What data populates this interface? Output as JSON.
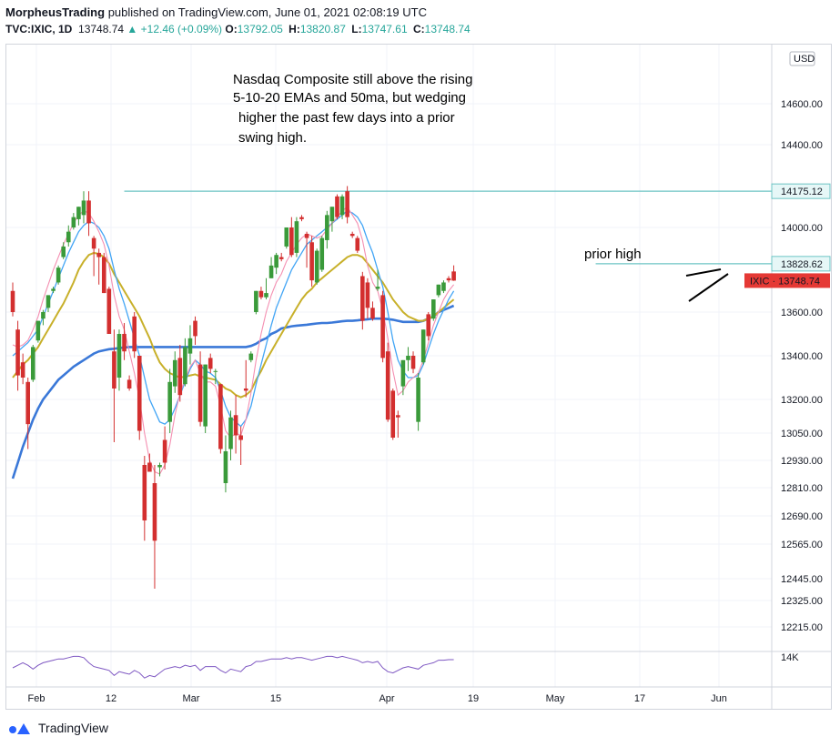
{
  "header": {
    "author": "MorpheusTrading",
    "published": "published on TradingView.com, June 01, 2021 02:08:19 UTC",
    "symbol": "TVC:IXIC, 1D",
    "last": "13748.74",
    "change": "+12.46 (+0.09%)",
    "o_label": "O:",
    "o_value": "13792.05",
    "h_label": "H:",
    "h_value": "13820.87",
    "l_label": "L:",
    "l_value": "13747.61",
    "c_label": "C:",
    "c_value": "13748.74"
  },
  "footer": {
    "brand": "TradingView",
    "icon": "tradingview-logo-icon"
  },
  "colors": {
    "up": "#26a69a",
    "candle_up": "#3a9a3a",
    "candle_down": "#d32f2f",
    "ema5": "#f48fb1",
    "ema10": "#42a5f5",
    "ema20": "#c8b02a",
    "ma50": "#3a78d8",
    "hline": "#6cc4c4",
    "rsi": "#7e57c2"
  },
  "chart_data": {
    "type": "candlestick",
    "title": "",
    "currency_badge": "USD",
    "x_ticks": [
      "Feb",
      "12",
      "Mar",
      "15",
      "Apr",
      "19",
      "May",
      "17",
      "Jun"
    ],
    "y_ticks": [
      14600,
      14400,
      14000,
      13600,
      13400,
      13200,
      13050,
      12930,
      12810,
      12690,
      12565,
      12445,
      12325,
      12215
    ],
    "y_tick_labels": [
      "14600.00",
      "14400.00",
      "14000.00",
      "13600.00",
      "13400.00",
      "13200.00",
      "13050.00",
      "12930.00",
      "12810.00",
      "12690.00",
      "12565.00",
      "12445.00",
      "12325.00",
      "12215.00"
    ],
    "price_labels": [
      {
        "text": "14175.12",
        "value": 14175.12,
        "style": "hline"
      },
      {
        "text": "13828.62",
        "value": 13828.62,
        "style": "hline"
      },
      {
        "text": "IXIC · 13748.74",
        "value": 13748.74,
        "style": "last"
      }
    ],
    "horizontal_lines": [
      14175.12,
      13828.62
    ],
    "annotations": [
      "Nasdaq Composite still above the rising",
      "5-10-20 EMAs and 50ma, but wedging",
      "higher the past few days into a prior",
      "swing high."
    ],
    "label_prior_high": "prior high",
    "lower_pane_label": "14K",
    "series_names": [
      "EMA 5",
      "EMA 10",
      "EMA 20",
      "MA 50"
    ],
    "candles": [
      {
        "o": 13700,
        "h": 13740,
        "l": 13580,
        "c": 13600
      },
      {
        "o": 13520,
        "h": 13560,
        "l": 13240,
        "c": 13310
      },
      {
        "o": 13370,
        "h": 13410,
        "l": 13270,
        "c": 13300
      },
      {
        "o": 13280,
        "h": 13300,
        "l": 12980,
        "c": 13090
      },
      {
        "o": 13290,
        "h": 13450,
        "l": 13280,
        "c": 13440
      },
      {
        "o": 13470,
        "h": 13560,
        "l": 13460,
        "c": 13560
      },
      {
        "o": 13570,
        "h": 13610,
        "l": 13540,
        "c": 13600
      },
      {
        "o": 13620,
        "h": 13680,
        "l": 13600,
        "c": 13680
      },
      {
        "o": 13700,
        "h": 13720,
        "l": 13690,
        "c": 13710
      },
      {
        "o": 13740,
        "h": 13820,
        "l": 13730,
        "c": 13810
      },
      {
        "o": 13860,
        "h": 13930,
        "l": 13850,
        "c": 13910
      },
      {
        "o": 13930,
        "h": 14010,
        "l": 13910,
        "c": 13980
      },
      {
        "o": 14000,
        "h": 14070,
        "l": 13990,
        "c": 14050
      },
      {
        "o": 14040,
        "h": 14100,
        "l": 14010,
        "c": 14100
      },
      {
        "o": 14060,
        "h": 14175,
        "l": 14020,
        "c": 14130
      },
      {
        "o": 14130,
        "h": 14175,
        "l": 13960,
        "c": 14020
      },
      {
        "o": 13950,
        "h": 13960,
        "l": 13770,
        "c": 13900
      },
      {
        "o": 13880,
        "h": 13900,
        "l": 13730,
        "c": 13860
      },
      {
        "o": 13860,
        "h": 13880,
        "l": 13690,
        "c": 13690
      },
      {
        "o": 13710,
        "h": 13720,
        "l": 13500,
        "c": 13500
      },
      {
        "o": 13420,
        "h": 13520,
        "l": 13010,
        "c": 13250
      },
      {
        "o": 13300,
        "h": 13520,
        "l": 13240,
        "c": 13500
      },
      {
        "o": 13500,
        "h": 13550,
        "l": 13380,
        "c": 13420
      },
      {
        "o": 13290,
        "h": 13310,
        "l": 13240,
        "c": 13250
      },
      {
        "o": 13580,
        "h": 13600,
        "l": 13390,
        "c": 13420
      },
      {
        "o": 13400,
        "h": 13400,
        "l": 13020,
        "c": 13060
      },
      {
        "o": 12910,
        "h": 12950,
        "l": 12580,
        "c": 12670
      },
      {
        "o": 12920,
        "h": 12960,
        "l": 12880,
        "c": 12880
      },
      {
        "o": 12830,
        "h": 12910,
        "l": 12390,
        "c": 12580
      },
      {
        "o": 12900,
        "h": 12920,
        "l": 12860,
        "c": 12910
      },
      {
        "o": 13020,
        "h": 13080,
        "l": 12890,
        "c": 12920
      },
      {
        "o": 13100,
        "h": 13340,
        "l": 13050,
        "c": 13280
      },
      {
        "o": 13260,
        "h": 13420,
        "l": 13230,
        "c": 13380
      },
      {
        "o": 13390,
        "h": 13450,
        "l": 13190,
        "c": 13220
      },
      {
        "o": 13270,
        "h": 13480,
        "l": 13260,
        "c": 13440
      },
      {
        "o": 13410,
        "h": 13540,
        "l": 13360,
        "c": 13480
      },
      {
        "o": 13560,
        "h": 13580,
        "l": 13450,
        "c": 13490
      },
      {
        "o": 13360,
        "h": 13420,
        "l": 13080,
        "c": 13100
      },
      {
        "o": 13080,
        "h": 13360,
        "l": 13050,
        "c": 13360
      },
      {
        "o": 13390,
        "h": 13410,
        "l": 13320,
        "c": 13340
      },
      {
        "o": 13330,
        "h": 13340,
        "l": 13270,
        "c": 13330
      },
      {
        "o": 13270,
        "h": 13270,
        "l": 12960,
        "c": 12980
      },
      {
        "o": 12830,
        "h": 13040,
        "l": 12790,
        "c": 12970
      },
      {
        "o": 12980,
        "h": 13150,
        "l": 12930,
        "c": 13120
      },
      {
        "o": 13130,
        "h": 13220,
        "l": 12960,
        "c": 13040
      },
      {
        "o": 13040,
        "h": 13080,
        "l": 12910,
        "c": 13020
      },
      {
        "o": 13250,
        "h": 13380,
        "l": 13210,
        "c": 13240
      },
      {
        "o": 13380,
        "h": 13420,
        "l": 13370,
        "c": 13410
      },
      {
        "o": 13600,
        "h": 13700,
        "l": 13590,
        "c": 13700
      },
      {
        "o": 13700,
        "h": 13720,
        "l": 13660,
        "c": 13670
      },
      {
        "o": 13670,
        "h": 13760,
        "l": 13660,
        "c": 13690
      },
      {
        "o": 13760,
        "h": 13860,
        "l": 13760,
        "c": 13820
      },
      {
        "o": 13810,
        "h": 13880,
        "l": 13780,
        "c": 13870
      },
      {
        "o": 13860,
        "h": 13880,
        "l": 13840,
        "c": 13850
      },
      {
        "o": 13910,
        "h": 14000,
        "l": 13900,
        "c": 14000
      },
      {
        "o": 14000,
        "h": 14050,
        "l": 13860,
        "c": 13870
      },
      {
        "o": 13880,
        "h": 14050,
        "l": 13860,
        "c": 14030
      },
      {
        "o": 14050,
        "h": 14060,
        "l": 14030,
        "c": 14040
      },
      {
        "o": 13970,
        "h": 13980,
        "l": 13810,
        "c": 13950
      },
      {
        "o": 13930,
        "h": 13960,
        "l": 13720,
        "c": 13750
      },
      {
        "o": 13740,
        "h": 13900,
        "l": 13730,
        "c": 13890
      },
      {
        "o": 13800,
        "h": 13960,
        "l": 13790,
        "c": 13950
      },
      {
        "o": 13940,
        "h": 14080,
        "l": 13900,
        "c": 14060
      },
      {
        "o": 14030,
        "h": 14100,
        "l": 13980,
        "c": 14100
      },
      {
        "o": 14150,
        "h": 14160,
        "l": 14040,
        "c": 14050
      },
      {
        "o": 14060,
        "h": 14160,
        "l": 14040,
        "c": 14150
      },
      {
        "o": 14175,
        "h": 14200,
        "l": 14020,
        "c": 14050
      },
      {
        "o": 13970,
        "h": 13980,
        "l": 13950,
        "c": 13960
      },
      {
        "o": 13950,
        "h": 13960,
        "l": 13880,
        "c": 13890
      },
      {
        "o": 13770,
        "h": 13790,
        "l": 13520,
        "c": 13560
      },
      {
        "o": 13740,
        "h": 13760,
        "l": 13570,
        "c": 13620
      },
      {
        "o": 13620,
        "h": 13650,
        "l": 13560,
        "c": 13570
      },
      {
        "o": 13710,
        "h": 13800,
        "l": 13700,
        "c": 13720
      },
      {
        "o": 13680,
        "h": 13700,
        "l": 13370,
        "c": 13390
      },
      {
        "o": 13420,
        "h": 13460,
        "l": 13100,
        "c": 13110
      },
      {
        "o": 13240,
        "h": 13250,
        "l": 13020,
        "c": 13030
      },
      {
        "o": 13130,
        "h": 13150,
        "l": 13030,
        "c": 13120
      },
      {
        "o": 13260,
        "h": 13380,
        "l": 13220,
        "c": 13380
      },
      {
        "o": 13380,
        "h": 13440,
        "l": 13330,
        "c": 13400
      },
      {
        "o": 13400,
        "h": 13420,
        "l": 13320,
        "c": 13340
      },
      {
        "o": 13100,
        "h": 13320,
        "l": 13060,
        "c": 13300
      },
      {
        "o": 13370,
        "h": 13520,
        "l": 13360,
        "c": 13520
      },
      {
        "o": 13590,
        "h": 13600,
        "l": 13470,
        "c": 13490
      },
      {
        "o": 13570,
        "h": 13660,
        "l": 13560,
        "c": 13660
      },
      {
        "o": 13680,
        "h": 13730,
        "l": 13670,
        "c": 13730
      },
      {
        "o": 13700,
        "h": 13750,
        "l": 13690,
        "c": 13740
      },
      {
        "o": 13760,
        "h": 13770,
        "l": 13740,
        "c": 13750
      },
      {
        "o": 13792.05,
        "h": 13820.87,
        "l": 13747.61,
        "c": 13748.74
      }
    ],
    "ma50": [
      12850,
      12920,
      12990,
      13050,
      13110,
      13160,
      13200,
      13230,
      13260,
      13290,
      13310,
      13330,
      13350,
      13365,
      13380,
      13395,
      13410,
      13420,
      13425,
      13430,
      13432,
      13435,
      13438,
      13440,
      13440,
      13440,
      13440,
      13440,
      13440,
      13440,
      13440,
      13440,
      13440,
      13440,
      13440,
      13440,
      13440,
      13440,
      13440,
      13440,
      13440,
      13440,
      13440,
      13440,
      13440,
      13440,
      13440,
      13445,
      13455,
      13470,
      13480,
      13500,
      13510,
      13525,
      13530,
      13535,
      13538,
      13540,
      13542,
      13545,
      13548,
      13550,
      13550,
      13552,
      13555,
      13558,
      13560,
      13560,
      13562,
      13565,
      13567,
      13570,
      13570,
      13570,
      13568,
      13565,
      13560,
      13555,
      13555,
      13555,
      13555,
      13560,
      13570,
      13580,
      13600,
      13610,
      13620,
      13630
    ],
    "ema20": [
      13300,
      13330,
      13360,
      13380,
      13410,
      13440,
      13480,
      13520,
      13560,
      13600,
      13640,
      13690,
      13740,
      13800,
      13840,
      13870,
      13880,
      13875,
      13860,
      13830,
      13780,
      13740,
      13700,
      13660,
      13620,
      13580,
      13530,
      13480,
      13420,
      13370,
      13340,
      13320,
      13310,
      13300,
      13305,
      13310,
      13315,
      13305,
      13300,
      13295,
      13290,
      13270,
      13250,
      13240,
      13220,
      13210,
      13220,
      13240,
      13290,
      13330,
      13380,
      13420,
      13460,
      13500,
      13540,
      13580,
      13620,
      13660,
      13690,
      13710,
      13740,
      13760,
      13780,
      13800,
      13820,
      13840,
      13860,
      13870,
      13870,
      13860,
      13830,
      13800,
      13770,
      13740,
      13700,
      13660,
      13630,
      13600,
      13580,
      13570,
      13560,
      13560,
      13570,
      13580,
      13600,
      13620,
      13640,
      13660
    ],
    "ema10": [
      13400,
      13420,
      13440,
      13460,
      13490,
      13520,
      13580,
      13640,
      13700,
      13760,
      13820,
      13880,
      13930,
      13980,
      14010,
      14030,
      14020,
      14000,
      13960,
      13900,
      13800,
      13710,
      13640,
      13560,
      13480,
      13400,
      13300,
      13200,
      13150,
      13100,
      13090,
      13110,
      13160,
      13220,
      13280,
      13340,
      13380,
      13360,
      13330,
      13320,
      13300,
      13240,
      13170,
      13120,
      13100,
      13080,
      13110,
      13170,
      13270,
      13360,
      13450,
      13540,
      13620,
      13680,
      13740,
      13800,
      13840,
      13880,
      13920,
      13940,
      13960,
      13980,
      14000,
      14020,
      14040,
      14060,
      14080,
      14070,
      14050,
      14010,
      13940,
      13880,
      13800,
      13720,
      13600,
      13470,
      13380,
      13330,
      13300,
      13300,
      13310,
      13360,
      13430,
      13500,
      13560,
      13610,
      13660,
      13700
    ],
    "ema5": [
      13450,
      13440,
      13450,
      13470,
      13520,
      13580,
      13660,
      13730,
      13800,
      13860,
      13920,
      13970,
      14020,
      14060,
      14080,
      14070,
      14030,
      13980,
      13920,
      13820,
      13680,
      13580,
      13520,
      13420,
      13320,
      13200,
      13050,
      12930,
      12880,
      12870,
      12910,
      13000,
      13130,
      13230,
      13290,
      13350,
      13380,
      13320,
      13280,
      13280,
      13260,
      13170,
      13060,
      13030,
      13050,
      13040,
      13110,
      13230,
      13380,
      13500,
      13600,
      13680,
      13740,
      13780,
      13840,
      13880,
      13920,
      13950,
      13970,
      13960,
      13950,
      13960,
      13990,
      14020,
      14050,
      14080,
      14100,
      14060,
      14020,
      13940,
      13820,
      13740,
      13700,
      13610,
      13480,
      13330,
      13220,
      13240,
      13280,
      13300,
      13320,
      13380,
      13460,
      13540,
      13600,
      13660,
      13700,
      13730
    ]
  }
}
